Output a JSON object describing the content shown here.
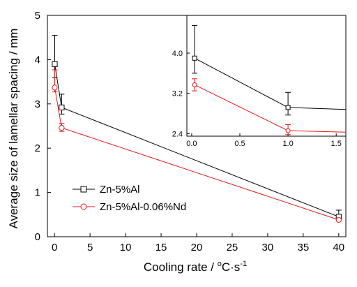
{
  "chart_data": [
    {
      "type": "line",
      "title": "",
      "xlabel": "Cooling rate / ",
      "xlabel_unit_degree": "o",
      "xlabel_unit_rest": "C·s",
      "xlabel_unit_exp": "-1",
      "ylabel": "Average size of lamellar spacing / mm",
      "xlim": [
        -1,
        41
      ],
      "ylim": [
        0,
        5
      ],
      "x_ticks": [
        0,
        5,
        10,
        15,
        20,
        25,
        30,
        35,
        40
      ],
      "y_ticks": [
        0,
        1,
        2,
        3,
        4,
        5
      ],
      "legend_position": "lower-left",
      "grid": false,
      "series": [
        {
          "name": "Zn-5%Al",
          "color": "#000000",
          "marker": "square",
          "points": [
            {
              "x": 0.03,
              "y": 3.9,
              "err_up": 0.65,
              "err_down": 0.3
            },
            {
              "x": 1.0,
              "y": 2.92,
              "err_up": 0.3,
              "err_down": 0.15
            },
            {
              "x": 40,
              "y": 0.45,
              "err_up": 0.15,
              "err_down": 0.05
            }
          ]
        },
        {
          "name": "Zn-5%Al-0.06%Nd",
          "color": "#e8191a",
          "marker": "circle",
          "points": [
            {
              "x": 0.03,
              "y": 3.37,
              "err_up": 0.4,
              "err_down": 0.1
            },
            {
              "x": 1.0,
              "y": 2.46,
              "err_up": 0.1,
              "err_down": 0.08
            },
            {
              "x": 40,
              "y": 0.38,
              "err_up": 0.0,
              "err_down": 0.0
            }
          ]
        }
      ]
    },
    {
      "type": "line",
      "title": "",
      "xlabel": "",
      "ylabel": "",
      "xlim": [
        -0.05,
        1.6
      ],
      "ylim": [
        2.35,
        4.75
      ],
      "x_ticks": [
        "0.0",
        "0.5",
        "1.0",
        "1.5"
      ],
      "y_ticks": [
        "2.4",
        "3.2",
        "4.0"
      ],
      "grid": false,
      "series": [
        {
          "name": "Zn-5%Al",
          "color": "#000000",
          "marker": "square",
          "points": [
            {
              "x": 0.03,
              "y": 3.9,
              "err_up": 0.65,
              "err_down": 0.3
            },
            {
              "x": 1.0,
              "y": 2.92,
              "err_up": 0.3,
              "err_down": 0.15
            },
            {
              "x": 1.6,
              "y": 2.88
            }
          ]
        },
        {
          "name": "Zn-5%Al-0.06%Nd",
          "color": "#e8191a",
          "marker": "circle",
          "points": [
            {
              "x": 0.03,
              "y": 3.37,
              "err_up": 0.12,
              "err_down": 0.12
            },
            {
              "x": 1.0,
              "y": 2.46,
              "err_up": 0.12,
              "err_down": 0.08
            },
            {
              "x": 1.6,
              "y": 2.43
            }
          ]
        }
      ]
    }
  ]
}
